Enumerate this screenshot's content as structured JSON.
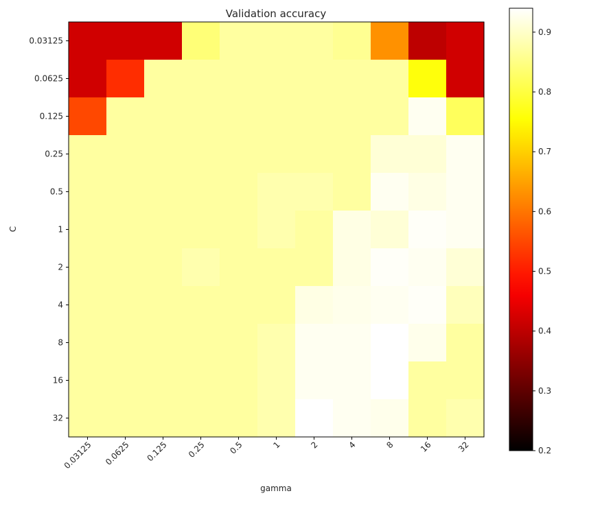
{
  "chart_data": {
    "type": "heatmap",
    "title": "Validation accuracy",
    "xlabel": "gamma",
    "ylabel": "C",
    "colormap": "hot",
    "x_categories": [
      "0.03125",
      "0.0625",
      "0.125",
      "0.25",
      "0.5",
      "1",
      "2",
      "4",
      "8",
      "16",
      "32"
    ],
    "y_categories": [
      "0.03125",
      "0.0625",
      "0.125",
      "0.25",
      "0.5",
      "1",
      "2",
      "4",
      "8",
      "16",
      "32"
    ],
    "values": [
      [
        0.42,
        0.42,
        0.42,
        0.84,
        0.87,
        0.87,
        0.87,
        0.86,
        0.63,
        0.4,
        0.42
      ],
      [
        0.42,
        0.52,
        0.87,
        0.87,
        0.87,
        0.87,
        0.87,
        0.87,
        0.87,
        0.76,
        0.42
      ],
      [
        0.55,
        0.87,
        0.87,
        0.87,
        0.87,
        0.87,
        0.87,
        0.87,
        0.87,
        0.93,
        0.82
      ],
      [
        0.87,
        0.87,
        0.87,
        0.87,
        0.87,
        0.87,
        0.87,
        0.87,
        0.91,
        0.91,
        0.93
      ],
      [
        0.87,
        0.87,
        0.87,
        0.87,
        0.87,
        0.88,
        0.88,
        0.87,
        0.93,
        0.92,
        0.93
      ],
      [
        0.87,
        0.87,
        0.87,
        0.87,
        0.87,
        0.88,
        0.87,
        0.92,
        0.91,
        0.935,
        0.93
      ],
      [
        0.87,
        0.87,
        0.87,
        0.88,
        0.87,
        0.87,
        0.87,
        0.92,
        0.935,
        0.93,
        0.91
      ],
      [
        0.87,
        0.87,
        0.87,
        0.87,
        0.87,
        0.87,
        0.92,
        0.925,
        0.93,
        0.935,
        0.89
      ],
      [
        0.87,
        0.87,
        0.87,
        0.87,
        0.87,
        0.88,
        0.93,
        0.93,
        0.94,
        0.925,
        0.87
      ],
      [
        0.87,
        0.87,
        0.87,
        0.87,
        0.87,
        0.88,
        0.93,
        0.93,
        0.94,
        0.87,
        0.87
      ],
      [
        0.87,
        0.87,
        0.87,
        0.87,
        0.87,
        0.88,
        0.94,
        0.93,
        0.925,
        0.87,
        0.88
      ]
    ],
    "colorbar": {
      "range": [
        0.2,
        0.94
      ],
      "ticks": [
        0.2,
        0.3,
        0.4,
        0.5,
        0.6,
        0.7,
        0.8,
        0.9
      ],
      "tick_labels": [
        "0.2",
        "0.3",
        "0.4",
        "0.5",
        "0.6",
        "0.7",
        "0.8",
        "0.9"
      ]
    },
    "grid": false,
    "legend": "colorbar-right"
  }
}
